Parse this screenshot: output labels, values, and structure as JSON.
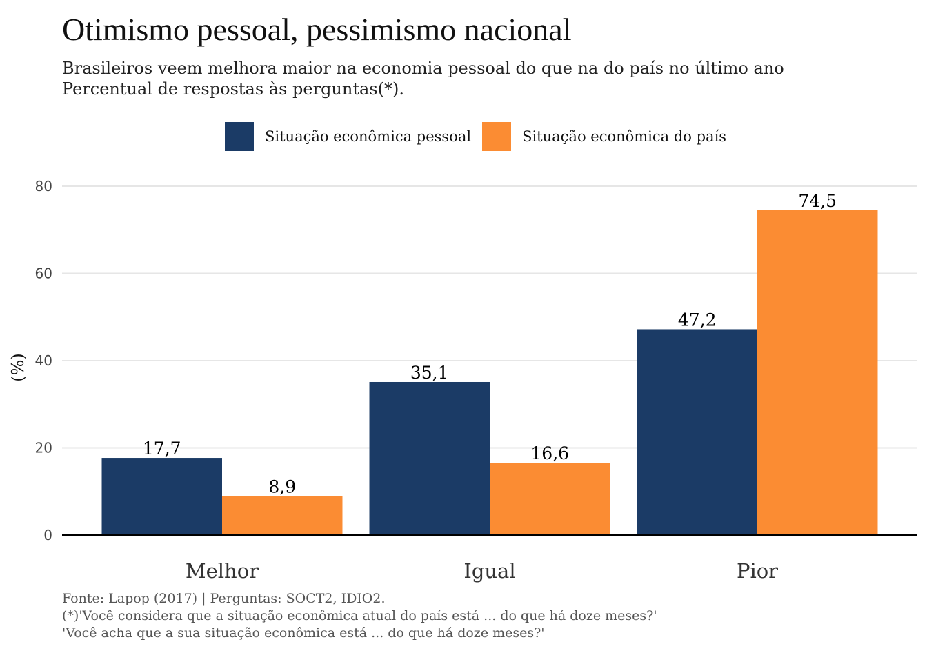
{
  "title": "Otimismo pessoal, pessimismo nacional",
  "subtitle_lines": [
    "Brasileiros veem melhora maior na economia pessoal do que na do país no último ano",
    "Percentual de respostas às perguntas(*)."
  ],
  "caption_lines": [
    "Fonte: Lapop (2017) | Perguntas: SOCT2, IDIO2.",
    "(*)'Você considera que a situação econômica atual do país está ... do que há doze meses?'",
    "'Você acha que a sua situação econômica está ... do que há doze meses?'"
  ],
  "colors": {
    "pessoal": "#1b3b66",
    "pais": "#fb8c33",
    "grid": "#e6e6e6",
    "axis": "#000000"
  },
  "chart_data": {
    "type": "bar",
    "title": "Otimismo pessoal, pessimismo nacional",
    "xlabel": "",
    "ylabel": "(%)",
    "categories": [
      "Melhor",
      "Igual",
      "Pior"
    ],
    "series": [
      {
        "name": "Situação econômica pessoal",
        "values": [
          17.7,
          35.1,
          47.2
        ],
        "labels": [
          "17,7",
          "35,1",
          "47,2"
        ],
        "color": "#1b3b66"
      },
      {
        "name": "Situação econômica do país",
        "values": [
          8.9,
          16.6,
          74.5
        ],
        "labels": [
          "8,9",
          "16,6",
          "74,5"
        ],
        "color": "#fb8c33"
      }
    ],
    "ylim": [
      0,
      80
    ],
    "yticks": [
      0,
      20,
      40,
      60,
      80
    ],
    "ytick_labels": [
      "0",
      "20",
      "40",
      "60",
      "80"
    ],
    "grid": true,
    "legend_position": "top"
  }
}
